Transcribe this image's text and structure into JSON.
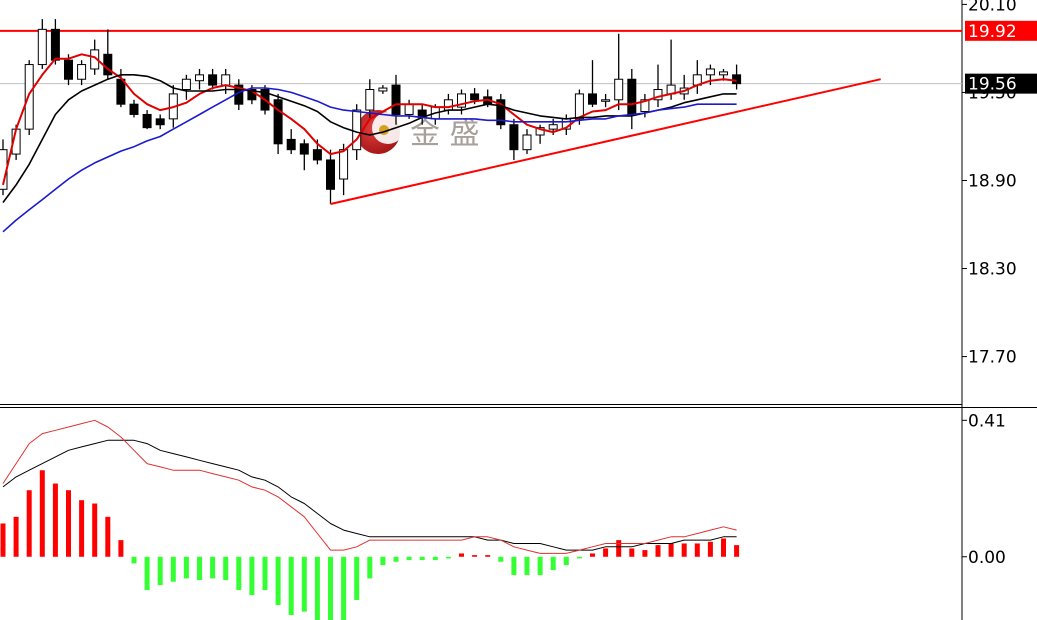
{
  "chart_data": [
    {
      "type": "candlestick",
      "open": [
        18.84,
        19.08,
        19.25,
        19.69,
        19.93,
        19.72,
        19.59,
        19.66,
        19.76,
        19.59,
        19.42,
        19.35,
        19.32,
        19.32,
        19.52,
        19.58,
        19.62,
        19.55,
        19.55,
        19.52,
        19.52,
        19.45,
        19.18,
        19.15,
        19.11,
        19.04,
        18.91,
        19.11,
        19.38,
        19.51,
        19.55,
        19.35,
        19.38,
        19.32,
        19.38,
        19.4,
        19.49,
        19.47,
        19.45,
        19.28,
        19.11,
        19.21,
        19.25,
        19.25,
        19.32,
        19.49,
        19.44,
        19.45,
        19.59,
        19.37,
        19.45,
        19.49,
        19.49,
        19.55,
        19.62,
        19.62,
        19.62
      ],
      "high": [
        19.18,
        19.28,
        19.72,
        20.0,
        20.0,
        19.76,
        19.72,
        19.86,
        19.93,
        19.66,
        19.45,
        19.38,
        19.35,
        19.55,
        19.62,
        19.66,
        19.66,
        19.66,
        19.59,
        19.55,
        19.55,
        19.49,
        19.25,
        19.18,
        19.18,
        19.11,
        19.15,
        19.42,
        19.59,
        19.55,
        19.62,
        19.45,
        19.42,
        19.42,
        19.49,
        19.52,
        19.53,
        19.52,
        19.49,
        19.32,
        19.25,
        19.28,
        19.32,
        19.35,
        19.52,
        19.72,
        19.49,
        19.9,
        19.66,
        19.49,
        19.69,
        19.86,
        19.62,
        19.72,
        19.69,
        19.66,
        19.69
      ],
      "low": [
        18.8,
        19.04,
        19.21,
        19.66,
        19.69,
        19.55,
        19.55,
        19.62,
        19.59,
        19.4,
        19.33,
        19.25,
        19.25,
        19.26,
        19.45,
        19.52,
        19.52,
        19.49,
        19.38,
        19.42,
        19.35,
        19.08,
        19.08,
        18.97,
        19.01,
        18.74,
        18.8,
        19.04,
        19.32,
        19.49,
        19.28,
        19.32,
        19.28,
        19.28,
        19.35,
        19.35,
        19.42,
        19.4,
        19.25,
        19.04,
        19.08,
        19.15,
        19.21,
        19.21,
        19.28,
        19.4,
        19.4,
        19.38,
        19.25,
        19.33,
        19.4,
        19.45,
        19.45,
        19.49,
        19.55,
        19.58,
        19.52
      ],
      "close": [
        19.11,
        19.25,
        19.69,
        19.93,
        19.72,
        19.59,
        19.69,
        19.79,
        19.62,
        19.42,
        19.35,
        19.26,
        19.28,
        19.49,
        19.59,
        19.62,
        19.55,
        19.62,
        19.42,
        19.45,
        19.38,
        19.15,
        19.11,
        19.08,
        19.04,
        18.84,
        19.11,
        19.38,
        19.52,
        19.53,
        19.35,
        19.42,
        19.33,
        19.4,
        19.45,
        19.49,
        19.45,
        19.42,
        19.28,
        19.11,
        19.21,
        19.26,
        19.28,
        19.32,
        19.49,
        19.42,
        19.45,
        19.59,
        19.35,
        19.45,
        19.52,
        19.55,
        19.53,
        19.62,
        19.66,
        19.64,
        19.56
      ],
      "up_color": "#ffffff",
      "down_color": "#000000",
      "series": [
        {
          "color": "#e00000",
          "values": [
            18.87,
            19.25,
            19.49,
            19.62,
            19.73,
            19.73,
            19.76,
            19.74,
            19.66,
            19.6,
            19.49,
            19.42,
            19.38,
            19.4,
            19.43,
            19.49,
            19.53,
            19.55,
            19.53,
            19.51,
            19.45,
            19.38,
            19.32,
            19.25,
            19.15,
            19.08,
            19.1,
            19.18,
            19.32,
            19.37,
            19.42,
            19.42,
            19.42,
            19.4,
            19.4,
            19.42,
            19.44,
            19.45,
            19.42,
            19.35,
            19.28,
            19.25,
            19.23,
            19.26,
            19.33,
            19.37,
            19.38,
            19.42,
            19.42,
            19.44,
            19.47,
            19.49,
            19.51,
            19.55,
            19.58,
            19.59,
            19.58
          ]
        },
        {
          "color": "#000000",
          "values": [
            18.75,
            18.87,
            19.01,
            19.18,
            19.35,
            19.45,
            19.51,
            19.55,
            19.59,
            19.62,
            19.62,
            19.61,
            19.58,
            19.53,
            19.51,
            19.51,
            19.51,
            19.52,
            19.52,
            19.51,
            19.5,
            19.47,
            19.44,
            19.41,
            19.37,
            19.3,
            19.26,
            19.23,
            19.21,
            19.23,
            19.26,
            19.29,
            19.33,
            19.36,
            19.38,
            19.38,
            19.4,
            19.42,
            19.41,
            19.38,
            19.36,
            19.34,
            19.33,
            19.32,
            19.33,
            19.33,
            19.34,
            19.34,
            19.34,
            19.36,
            19.38,
            19.4,
            19.43,
            19.45,
            19.47,
            19.49,
            19.49
          ]
        },
        {
          "color": "#1a1ad0",
          "values": [
            18.55,
            18.63,
            18.7,
            18.77,
            18.84,
            18.91,
            18.97,
            19.02,
            19.06,
            19.1,
            19.13,
            19.17,
            19.2,
            19.25,
            19.3,
            19.35,
            19.4,
            19.45,
            19.5,
            19.53,
            19.53,
            19.52,
            19.5,
            19.47,
            19.44,
            19.4,
            19.38,
            19.37,
            19.36,
            19.35,
            19.34,
            19.34,
            19.33,
            19.32,
            19.32,
            19.32,
            19.32,
            19.31,
            19.31,
            19.3,
            19.3,
            19.3,
            19.3,
            19.3,
            19.31,
            19.32,
            19.32,
            19.34,
            19.35,
            19.36,
            19.38,
            19.39,
            19.4,
            19.42,
            19.42,
            19.42,
            19.42
          ]
        }
      ],
      "hlines": [
        {
          "value": 19.92,
          "color": "#ff0000"
        },
        {
          "value": 19.56,
          "color": "#000000"
        }
      ],
      "trendline": {
        "x": [
          25,
          67
        ],
        "values": [
          18.74,
          19.59
        ],
        "color": "#ff0000"
      },
      "watermark": "金 盛",
      "ylim": [
        17.37,
        20.13
      ],
      "yticks": [
        {
          "value": 20.1,
          "label": "20.10"
        },
        {
          "value": 19.5,
          "label": "19.50"
        },
        {
          "value": 18.9,
          "label": "18.90"
        },
        {
          "value": 18.3,
          "label": "18.30"
        },
        {
          "value": 17.7,
          "label": "17.70"
        }
      ],
      "grid": false
    },
    {
      "type": "macd",
      "values": [
        0.1,
        0.12,
        0.2,
        0.26,
        0.22,
        0.2,
        0.17,
        0.16,
        0.12,
        0.05,
        -0.02,
        -0.1,
        -0.085,
        -0.075,
        -0.065,
        -0.07,
        -0.065,
        -0.07,
        -0.1,
        -0.115,
        -0.1,
        -0.145,
        -0.175,
        -0.165,
        -0.19,
        -0.19,
        -0.19,
        -0.13,
        -0.065,
        -0.025,
        -0.015,
        -0.01,
        -0.01,
        -0.01,
        -0.005,
        0.01,
        0.005,
        0.005,
        -0.015,
        -0.055,
        -0.055,
        -0.055,
        -0.04,
        -0.025,
        -0.005,
        0.01,
        0.025,
        0.05,
        0.025,
        0.02,
        0.035,
        0.04,
        0.04,
        0.04,
        0.045,
        0.055,
        0.035
      ],
      "pos_color": "#ff0000",
      "neg_color": "#33ff33",
      "series": [
        {
          "color": "#000000",
          "values": [
            0.21,
            0.24,
            0.26,
            0.28,
            0.3,
            0.32,
            0.33,
            0.34,
            0.35,
            0.35,
            0.35,
            0.34,
            0.32,
            0.31,
            0.3,
            0.29,
            0.28,
            0.27,
            0.26,
            0.24,
            0.23,
            0.21,
            0.18,
            0.16,
            0.13,
            0.1,
            0.08,
            0.07,
            0.06,
            0.06,
            0.06,
            0.06,
            0.06,
            0.06,
            0.06,
            0.06,
            0.06,
            0.05,
            0.05,
            0.04,
            0.04,
            0.04,
            0.03,
            0.02,
            0.02,
            0.02,
            0.03,
            0.03,
            0.03,
            0.04,
            0.04,
            0.04,
            0.05,
            0.05,
            0.05,
            0.06,
            0.06
          ]
        },
        {
          "color": "#e03030",
          "values": [
            0.22,
            0.28,
            0.34,
            0.37,
            0.38,
            0.39,
            0.4,
            0.41,
            0.39,
            0.36,
            0.32,
            0.28,
            0.27,
            0.26,
            0.26,
            0.26,
            0.25,
            0.24,
            0.23,
            0.21,
            0.2,
            0.18,
            0.15,
            0.12,
            0.07,
            0.02,
            0.02,
            0.03,
            0.05,
            0.05,
            0.05,
            0.05,
            0.05,
            0.05,
            0.05,
            0.05,
            0.06,
            0.06,
            0.05,
            0.03,
            0.02,
            0.01,
            0.01,
            0.01,
            0.02,
            0.03,
            0.04,
            0.04,
            0.04,
            0.04,
            0.05,
            0.06,
            0.06,
            0.07,
            0.08,
            0.09,
            0.08
          ]
        }
      ],
      "ylim": [
        -0.19,
        0.45
      ],
      "yticks": [
        0.41,
        {
          "value": 0,
          "label": "0.00"
        }
      ],
      "grid": false
    }
  ]
}
